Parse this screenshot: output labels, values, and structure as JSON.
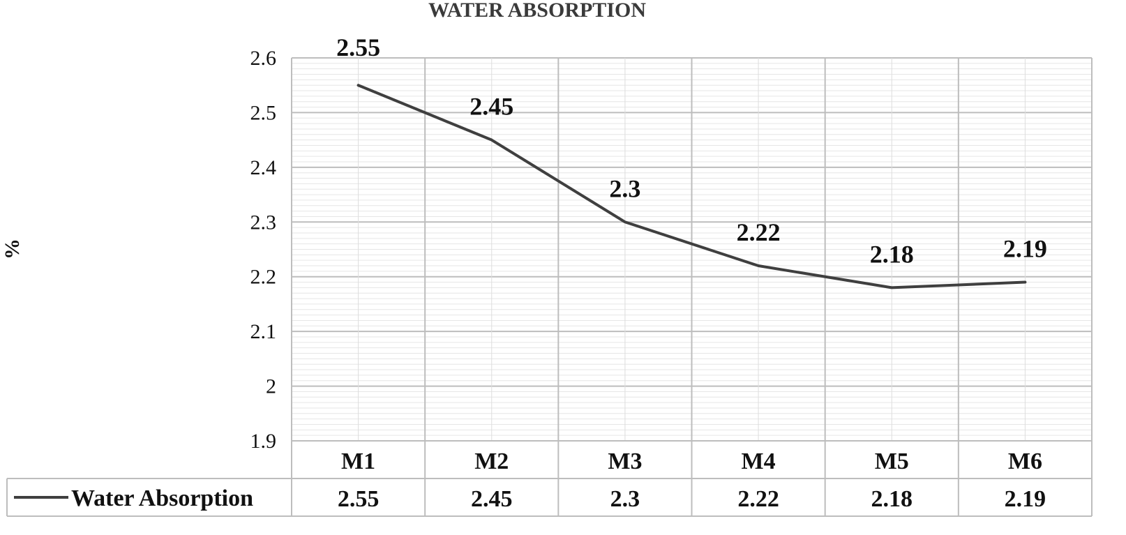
{
  "chart_data": {
    "type": "line",
    "title": "WATER ABSORPTION",
    "ylabel": "%",
    "xlabel": "",
    "categories": [
      "M1",
      "M2",
      "M3",
      "M4",
      "M5",
      "M6"
    ],
    "series": [
      {
        "name": "Water Absorption",
        "values": [
          2.55,
          2.45,
          2.3,
          2.22,
          2.18,
          2.19
        ],
        "color": "#3f3f3f"
      }
    ],
    "ylim": [
      1.9,
      2.6
    ],
    "yticks": [
      "1.9",
      "2",
      "2.1",
      "2.2",
      "2.3",
      "2.4",
      "2.5",
      "2.6"
    ],
    "data_labels": [
      "2.55",
      "2.45",
      "2.3",
      "2.22",
      "2.18",
      "2.19"
    ],
    "table_values": [
      "2.55",
      "2.45",
      "2.3",
      "2.22",
      "2.18",
      "2.19"
    ],
    "grid": true,
    "data_table": true,
    "legend": "bottom-left (data table key)"
  }
}
